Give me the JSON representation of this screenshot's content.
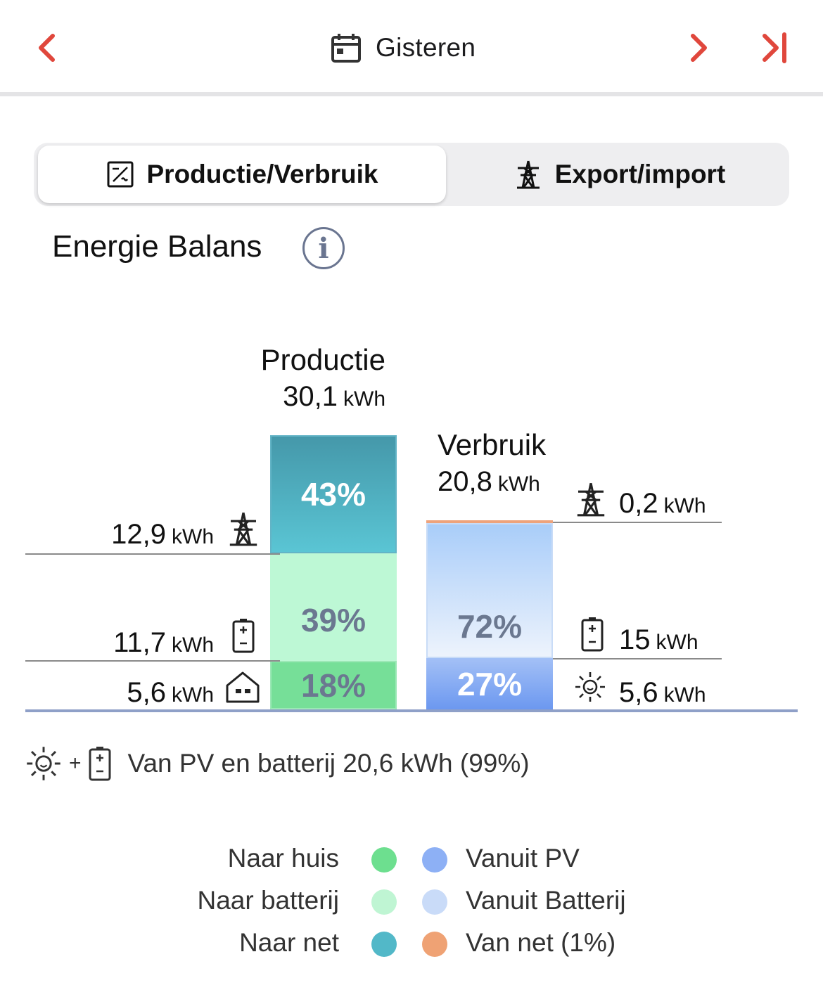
{
  "nav": {
    "date_label": "Gisteren",
    "accent_color": "#e0473c"
  },
  "tabs": [
    {
      "label": "Productie/Verbruik",
      "icon": "inverter-icon",
      "active": true
    },
    {
      "label": "Export/import",
      "icon": "power-pylon-icon",
      "active": false
    }
  ],
  "section": {
    "title": "Energie Balans",
    "info_glyph": "i"
  },
  "production": {
    "title": "Productie",
    "value": "30,1",
    "unit": "kWh",
    "segments": [
      {
        "name": "Naar net",
        "percent": 43,
        "label": "43%",
        "color": "#4fb6c8"
      },
      {
        "name": "Naar batterij",
        "percent": 39,
        "label": "39%",
        "color": "#bff7d6"
      },
      {
        "name": "Naar huis",
        "percent": 18,
        "label": "18%",
        "color": "#72df96"
      }
    ],
    "side_values": [
      {
        "value": "12,9",
        "unit": "kWh",
        "icon": "power-pylon-icon"
      },
      {
        "value": "11,7",
        "unit": "kWh",
        "icon": "battery-icon"
      },
      {
        "value": "5,6",
        "unit": "kWh",
        "icon": "house-icon"
      }
    ]
  },
  "consumption": {
    "title": "Verbruik",
    "value": "20,8",
    "unit": "kWh",
    "segments": [
      {
        "name": "Van net",
        "percent": 1,
        "label": "",
        "color": "#f0a57a"
      },
      {
        "name": "Vanuit Batterij",
        "percent": 72,
        "label": "72%",
        "color": "#c6dcfa"
      },
      {
        "name": "Vanuit PV",
        "percent": 27,
        "label": "27%",
        "color": "#7fa9f5"
      }
    ],
    "side_values": [
      {
        "value": "0,2",
        "unit": "kWh",
        "icon": "power-pylon-icon"
      },
      {
        "value": "15",
        "unit": "kWh",
        "icon": "battery-icon"
      },
      {
        "value": "5,6",
        "unit": "kWh",
        "icon": "sun-icon"
      }
    ]
  },
  "summary": {
    "plus": "+",
    "text": "Van PV en batterij 20,6 kWh (99%)"
  },
  "legend": {
    "left": [
      {
        "label": "Naar huis",
        "color": "#6ddf8f"
      },
      {
        "label": "Naar batterij",
        "color": "#bff5d3"
      },
      {
        "label": "Naar net",
        "color": "#52b8c8"
      }
    ],
    "right": [
      {
        "label": "Vanuit PV",
        "color": "#8db0f5"
      },
      {
        "label": "Vanuit Batterij",
        "color": "#c9dbf8"
      },
      {
        "label": "Van net (1%)",
        "color": "#efa274"
      }
    ]
  }
}
